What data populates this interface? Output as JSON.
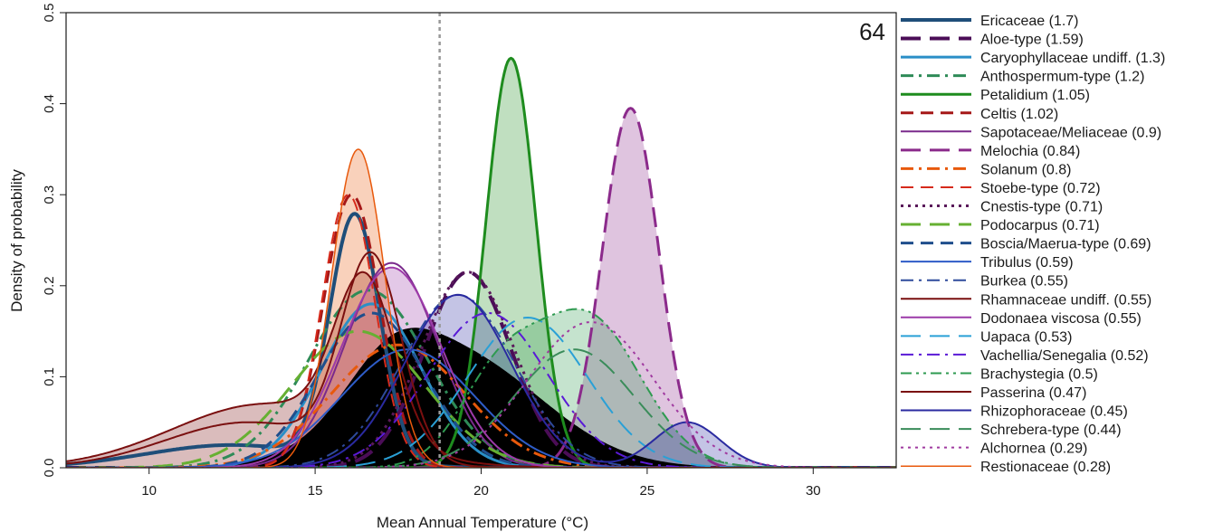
{
  "panel_number": "64",
  "chart_data": {
    "type": "area",
    "xlabel": "Mean Annual Temperature (°C)",
    "ylabel": "Density of probability",
    "xlim": [
      7.5,
      32.5
    ],
    "ylim": [
      0,
      0.5
    ],
    "x_ticks": [
      10,
      15,
      20,
      25,
      30
    ],
    "x_tick_labels": [
      "10",
      "15",
      "20",
      "25",
      "30"
    ],
    "y_ticks": [
      0,
      0.1,
      0.2,
      0.3,
      0.4,
      0.5
    ],
    "y_tick_labels": [
      "0.0",
      "0.1",
      "0.2",
      "0.3",
      "0.4",
      "0.5"
    ],
    "vline": {
      "x": 18.75,
      "color": "#999999",
      "style": "dotted"
    },
    "legend_position": "right",
    "background_distribution": {
      "color": "#000000",
      "components": [
        [
          0.125,
          19.2,
          2.6
        ],
        [
          0.05,
          17.2,
          1.3
        ]
      ]
    },
    "series": [
      {
        "name": "Ericaceae (1.7)",
        "color": "#1f4e79",
        "dash": "solid",
        "width": 4,
        "fill": false,
        "components": [
          [
            0.27,
            16.2,
            0.75
          ],
          [
            0.025,
            12.5,
            2.6
          ]
        ]
      },
      {
        "name": "Aloe-type (1.59)",
        "color": "#4b0d57",
        "dash": "long",
        "width": 4,
        "fill": false,
        "components": [
          [
            0.215,
            19.6,
            1.3
          ]
        ]
      },
      {
        "name": "Caryophyllaceae undiff. (1.3)",
        "color": "#2a8fc7",
        "dash": "solid",
        "width": 3,
        "fill": false,
        "components": [
          [
            0.18,
            16.7,
            1.5
          ]
        ]
      },
      {
        "name": "Anthospermum-type (1.2)",
        "color": "#2e8b57",
        "dash": "dashdot",
        "width": 3,
        "fill": false,
        "components": [
          [
            0.195,
            16.6,
            1.8
          ]
        ]
      },
      {
        "name": "Petalidium (1.05)",
        "color": "#1e8c1e",
        "dash": "solid",
        "width": 3,
        "fill": true,
        "components": [
          [
            0.45,
            20.9,
            0.75
          ]
        ]
      },
      {
        "name": "Celtis (1.02)",
        "color": "#a51818",
        "dash": "dash",
        "width": 3,
        "fill": false,
        "components": [
          [
            0.3,
            16.1,
            0.85
          ]
        ]
      },
      {
        "name": "Sapotaceae/Meliaceae (0.9)",
        "color": "#7a2a8c",
        "dash": "solid",
        "width": 2,
        "fill": false,
        "components": [
          [
            0.225,
            17.3,
            1.4
          ]
        ]
      },
      {
        "name": "Melochia (0.84)",
        "color": "#8b2a8b",
        "dash": "long",
        "width": 3,
        "fill": true,
        "components": [
          [
            0.395,
            24.5,
            0.85
          ]
        ]
      },
      {
        "name": "Solanum (0.8)",
        "color": "#e8590c",
        "dash": "dashdot",
        "width": 3,
        "fill": false,
        "components": [
          [
            0.135,
            17.5,
            2.0
          ]
        ]
      },
      {
        "name": "Stoebe-type (0.72)",
        "color": "#d62a1b",
        "dash": "dash",
        "width": 2,
        "fill": false,
        "components": [
          [
            0.3,
            16.0,
            0.8
          ]
        ]
      },
      {
        "name": "Cnestis-type (0.71)",
        "color": "#5a1a5a",
        "dash": "dot",
        "width": 3,
        "fill": false,
        "components": [
          [
            0.215,
            19.6,
            1.4
          ]
        ]
      },
      {
        "name": "Podocarpus (0.71)",
        "color": "#66b032",
        "dash": "long",
        "width": 3,
        "fill": false,
        "components": [
          [
            0.15,
            16.3,
            2.0
          ]
        ]
      },
      {
        "name": "Boscia/Maerua-type (0.69)",
        "color": "#1f4e8c",
        "dash": "dash",
        "width": 3,
        "fill": false,
        "components": [
          [
            0.17,
            16.7,
            1.6
          ]
        ]
      },
      {
        "name": "Tribulus (0.59)",
        "color": "#2e5cc7",
        "dash": "solid",
        "width": 2,
        "fill": false,
        "components": [
          [
            0.13,
            17.8,
            2.0
          ]
        ]
      },
      {
        "name": "Burkea (0.55)",
        "color": "#2e4a9c",
        "dash": "dashdot",
        "width": 2,
        "fill": false,
        "components": [
          [
            0.19,
            19.3,
            1.7
          ]
        ]
      },
      {
        "name": "Rhamnaceae undiff. (0.55)",
        "color": "#7a0f0f",
        "dash": "solid",
        "width": 2,
        "fill": true,
        "components": [
          [
            0.175,
            16.5,
            0.9
          ],
          [
            0.07,
            13.5,
            2.8
          ]
        ]
      },
      {
        "name": "Dodonaea viscosa (0.55)",
        "color": "#9c3aa8",
        "dash": "solid",
        "width": 2,
        "fill": true,
        "components": [
          [
            0.22,
            17.3,
            1.5
          ]
        ]
      },
      {
        "name": "Uapaca (0.53)",
        "color": "#2aa0d6",
        "dash": "long",
        "width": 2,
        "fill": false,
        "components": [
          [
            0.165,
            21.4,
            1.8
          ]
        ]
      },
      {
        "name": "Vachellia/Senegalia (0.52)",
        "color": "#5a1ad6",
        "dash": "dashdot",
        "width": 2,
        "fill": false,
        "components": [
          [
            0.17,
            20.2,
            1.8
          ]
        ]
      },
      {
        "name": "Brachystegia (0.5)",
        "color": "#2e9a50",
        "dash": "dashdotdot",
        "width": 2,
        "fill": true,
        "components": [
          [
            0.165,
            23.2,
            1.6
          ],
          [
            0.09,
            20.5,
            1.2
          ]
        ]
      },
      {
        "name": "Passerina (0.47)",
        "color": "#7a1010",
        "dash": "solid",
        "width": 2,
        "fill": false,
        "components": [
          [
            0.22,
            16.7,
            0.9
          ],
          [
            0.05,
            13.0,
            2.5
          ]
        ]
      },
      {
        "name": "Rhizophoraceae (0.45)",
        "color": "#2a2aa0",
        "dash": "solid",
        "width": 2,
        "fill": true,
        "components": [
          [
            0.19,
            19.3,
            1.6
          ],
          [
            0.05,
            26.2,
            1.0
          ]
        ]
      },
      {
        "name": "Schrebera-type (0.44)",
        "color": "#3a8c5a",
        "dash": "long",
        "width": 2,
        "fill": false,
        "components": [
          [
            0.13,
            22.8,
            1.8
          ]
        ]
      },
      {
        "name": "Alchornea (0.29)",
        "color": "#a03aa0",
        "dash": "dot",
        "width": 2,
        "fill": false,
        "components": [
          [
            0.16,
            23.3,
            1.9
          ]
        ]
      },
      {
        "name": "Restionaceae (0.28)",
        "color": "#e8590c",
        "dash": "solid",
        "width": 1.5,
        "fill": true,
        "components": [
          [
            0.35,
            16.3,
            0.8
          ]
        ]
      }
    ]
  }
}
